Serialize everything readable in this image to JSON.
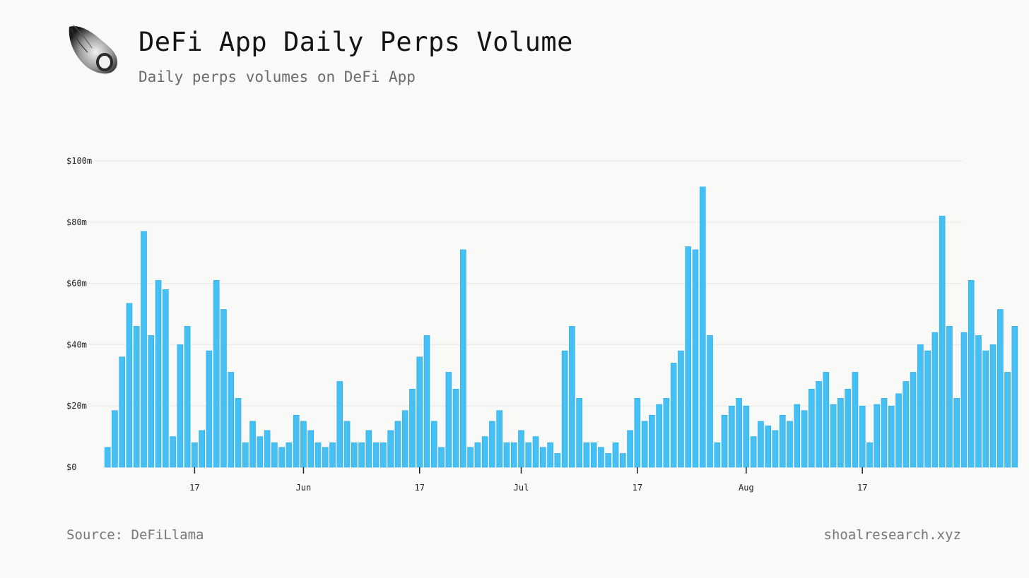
{
  "header": {
    "title": "DeFi App Daily Perps Volume",
    "subtitle": "Daily perps volumes on DeFi App"
  },
  "footer": {
    "source": "Source: DeFiLlama",
    "site": "shoalresearch.xyz"
  },
  "colors": {
    "bar": "#44c0f4",
    "bar_edge": "#2aa9e2",
    "grid": "#e8e8e6",
    "axis": "#222222"
  },
  "logo_icon": "seashell-icon",
  "chart_data": {
    "type": "bar",
    "title": "DeFi App Daily Perps Volume",
    "subtitle": "Daily perps volumes on DeFi App",
    "xlabel": "",
    "ylabel": "",
    "unit": "$m",
    "ylim": [
      0,
      100
    ],
    "yticks": [
      0,
      20,
      40,
      60,
      80,
      100
    ],
    "ytick_labels": [
      "$0",
      "$20m",
      "$40m",
      "$60m",
      "$80m",
      "$100m"
    ],
    "grid": true,
    "x_start": "2025-05-05",
    "xtick_labels": [
      "17",
      "Jun",
      "17",
      "Jul",
      "17",
      "Aug",
      "17"
    ],
    "xtick_dates": [
      "2025-05-17",
      "2025-06-01",
      "2025-06-17",
      "2025-07-01",
      "2025-07-17",
      "2025-08-01",
      "2025-08-17"
    ],
    "values": [
      6.5,
      18.5,
      36,
      53.5,
      46,
      77,
      43,
      61,
      58,
      10,
      40,
      46,
      8,
      12,
      38,
      61,
      51.5,
      31,
      22.5,
      8,
      15,
      10,
      12,
      8,
      6.5,
      8,
      17,
      15,
      12,
      8,
      6.5,
      8,
      28,
      15,
      8,
      8,
      12,
      8,
      8,
      12,
      15,
      18.5,
      25.5,
      36,
      43,
      15,
      6.5,
      31,
      25.5,
      71,
      6.5,
      8,
      10,
      15,
      18.5,
      8,
      8,
      12,
      8,
      10,
      6.5,
      8,
      4.5,
      38,
      46,
      22.5,
      8,
      8,
      6.5,
      4.5,
      8,
      4.5,
      12,
      22.5,
      15,
      17,
      20.5,
      22.5,
      34,
      38,
      72,
      71,
      91.5,
      43,
      8,
      17,
      20,
      22.5,
      20,
      10,
      15,
      13.5,
      12,
      17,
      15,
      20.5,
      18.5,
      25.5,
      28,
      31,
      20.5,
      22.5,
      25.5,
      31,
      20,
      8,
      20.5,
      22.5,
      20,
      24,
      28,
      31,
      40,
      38,
      44,
      82,
      46,
      22.5,
      44,
      61,
      43,
      38,
      40,
      51.5,
      31,
      46
    ]
  }
}
